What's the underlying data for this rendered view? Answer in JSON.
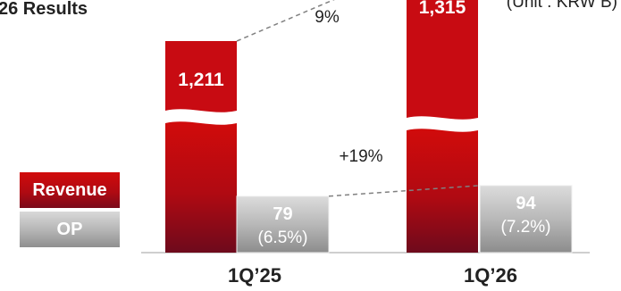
{
  "title": "26 Results",
  "unit": "(Unit : KRW B)",
  "chart_data": {
    "type": "bar",
    "categories": [
      "1Q’25",
      "1Q’26"
    ],
    "series": [
      {
        "name": "Revenue",
        "values": [
          1211,
          1315
        ]
      },
      {
        "name": "OP",
        "values": [
          79,
          94
        ],
        "margins": [
          "(6.5%)",
          "(7.2%)"
        ]
      }
    ],
    "annotations": {
      "revenue_growth": "9%",
      "op_growth": "+19%"
    },
    "axis_break": true,
    "legend": [
      "Revenue",
      "OP"
    ],
    "legend_position": "left",
    "colors": {
      "revenue": "#c00a14",
      "op": "#a6a6a6",
      "dashed": "#808080"
    }
  }
}
